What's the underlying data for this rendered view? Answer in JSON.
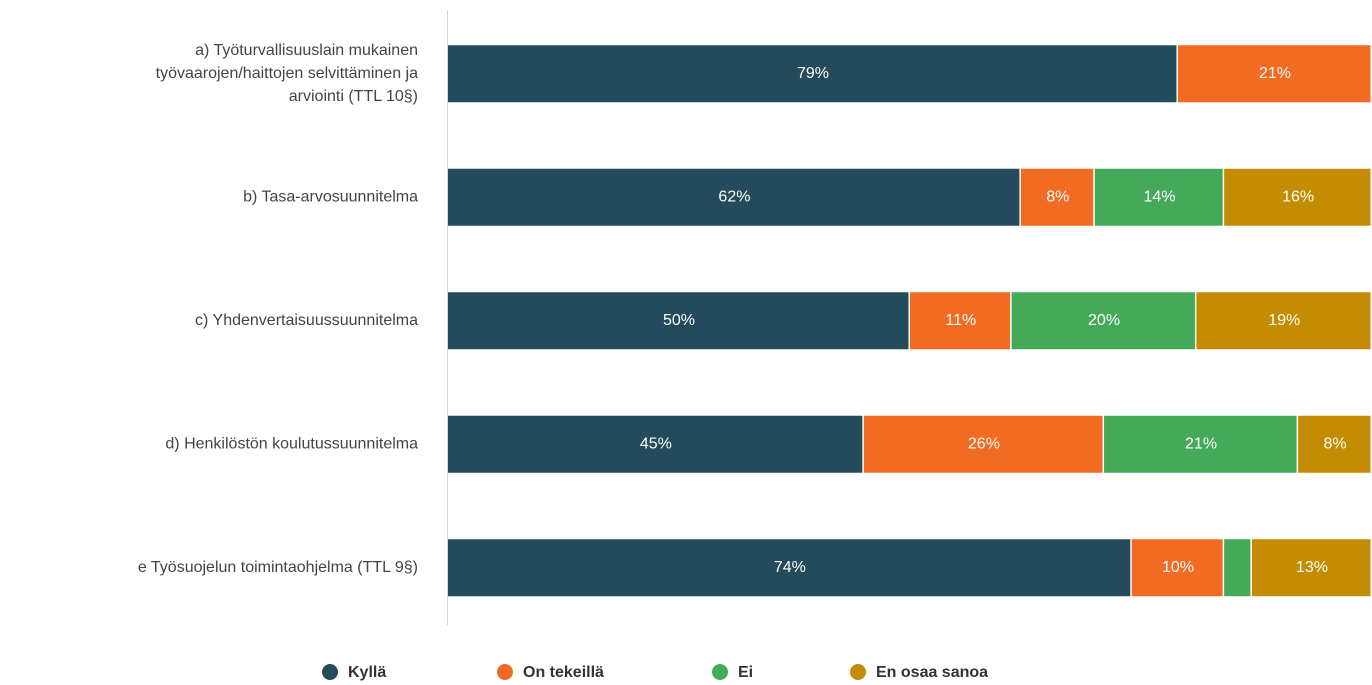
{
  "chart_data": {
    "type": "stacked-barh",
    "categories": [
      "a) Työturvallisuuslain mukainen\ntyövaarojen/haittojen selvittäminen ja\narviointi (TTL 10§)",
      "b) Tasa-arvosuunnitelma",
      "c) Yhdenvertaisuussuunnitelma",
      "d) Henkilöstön koulutussuunnitelma",
      "e Työsuojelun toimintaohjelma (TTL 9§)"
    ],
    "series": [
      {
        "name": "Kyllä",
        "color": "#234b5b",
        "values": [
          79,
          62,
          50,
          45,
          74
        ],
        "value_labels": [
          "79%",
          "62%",
          "50%",
          "45%",
          "74%"
        ]
      },
      {
        "name": "On tekeillä",
        "color": "#f26b22",
        "values": [
          21,
          8,
          11,
          26,
          10
        ],
        "value_labels": [
          "21%",
          "8%",
          "11%",
          "26%",
          "10%"
        ]
      },
      {
        "name": "Ei",
        "color": "#45a95a",
        "values": [
          null,
          14,
          20,
          21,
          3
        ],
        "value_labels": [
          null,
          "14%",
          "20%",
          "21%",
          null
        ]
      },
      {
        "name": "En osaa sanoa",
        "color": "#c48c02",
        "values": [
          null,
          16,
          19,
          8,
          13
        ],
        "value_labels": [
          null,
          "16%",
          "19%",
          "8%",
          "13%"
        ]
      }
    ],
    "xlim": [
      0,
      100
    ],
    "legend": "bottom"
  }
}
